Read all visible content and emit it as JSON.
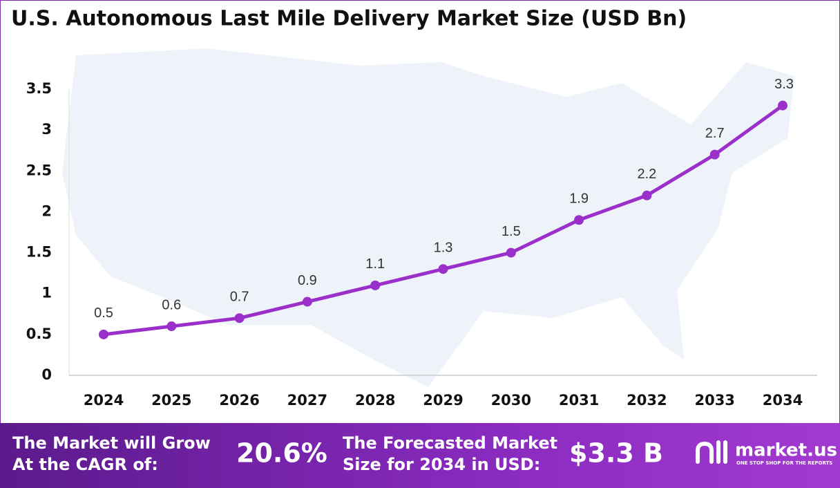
{
  "chart_data": {
    "type": "line",
    "title": "U.S. Autonomous Last Mile Delivery Market Size (USD Bn)",
    "categories": [
      "2024",
      "2025",
      "2026",
      "2027",
      "2028",
      "2029",
      "2030",
      "2031",
      "2032",
      "2033",
      "2034"
    ],
    "values": [
      0.5,
      0.6,
      0.7,
      0.9,
      1.1,
      1.3,
      1.5,
      1.9,
      2.2,
      2.7,
      3.3
    ],
    "color": "#9b2fc9",
    "ylim": [
      0,
      3.5
    ],
    "yticks": [
      0,
      0.5,
      1,
      1.5,
      2,
      2.5,
      3,
      3.5
    ],
    "grid": false
  },
  "footer": {
    "cagr_text": [
      "The Market will Grow",
      "At the CAGR of:"
    ],
    "cagr_value": "20.6%",
    "forecast_text": [
      "The Forecasted Market",
      "Size for 2034 in USD:"
    ],
    "forecast_value": "$3.3 B",
    "brand": "market.us",
    "tagline": "ONE STOP SHOP FOR THE REPORTS"
  }
}
